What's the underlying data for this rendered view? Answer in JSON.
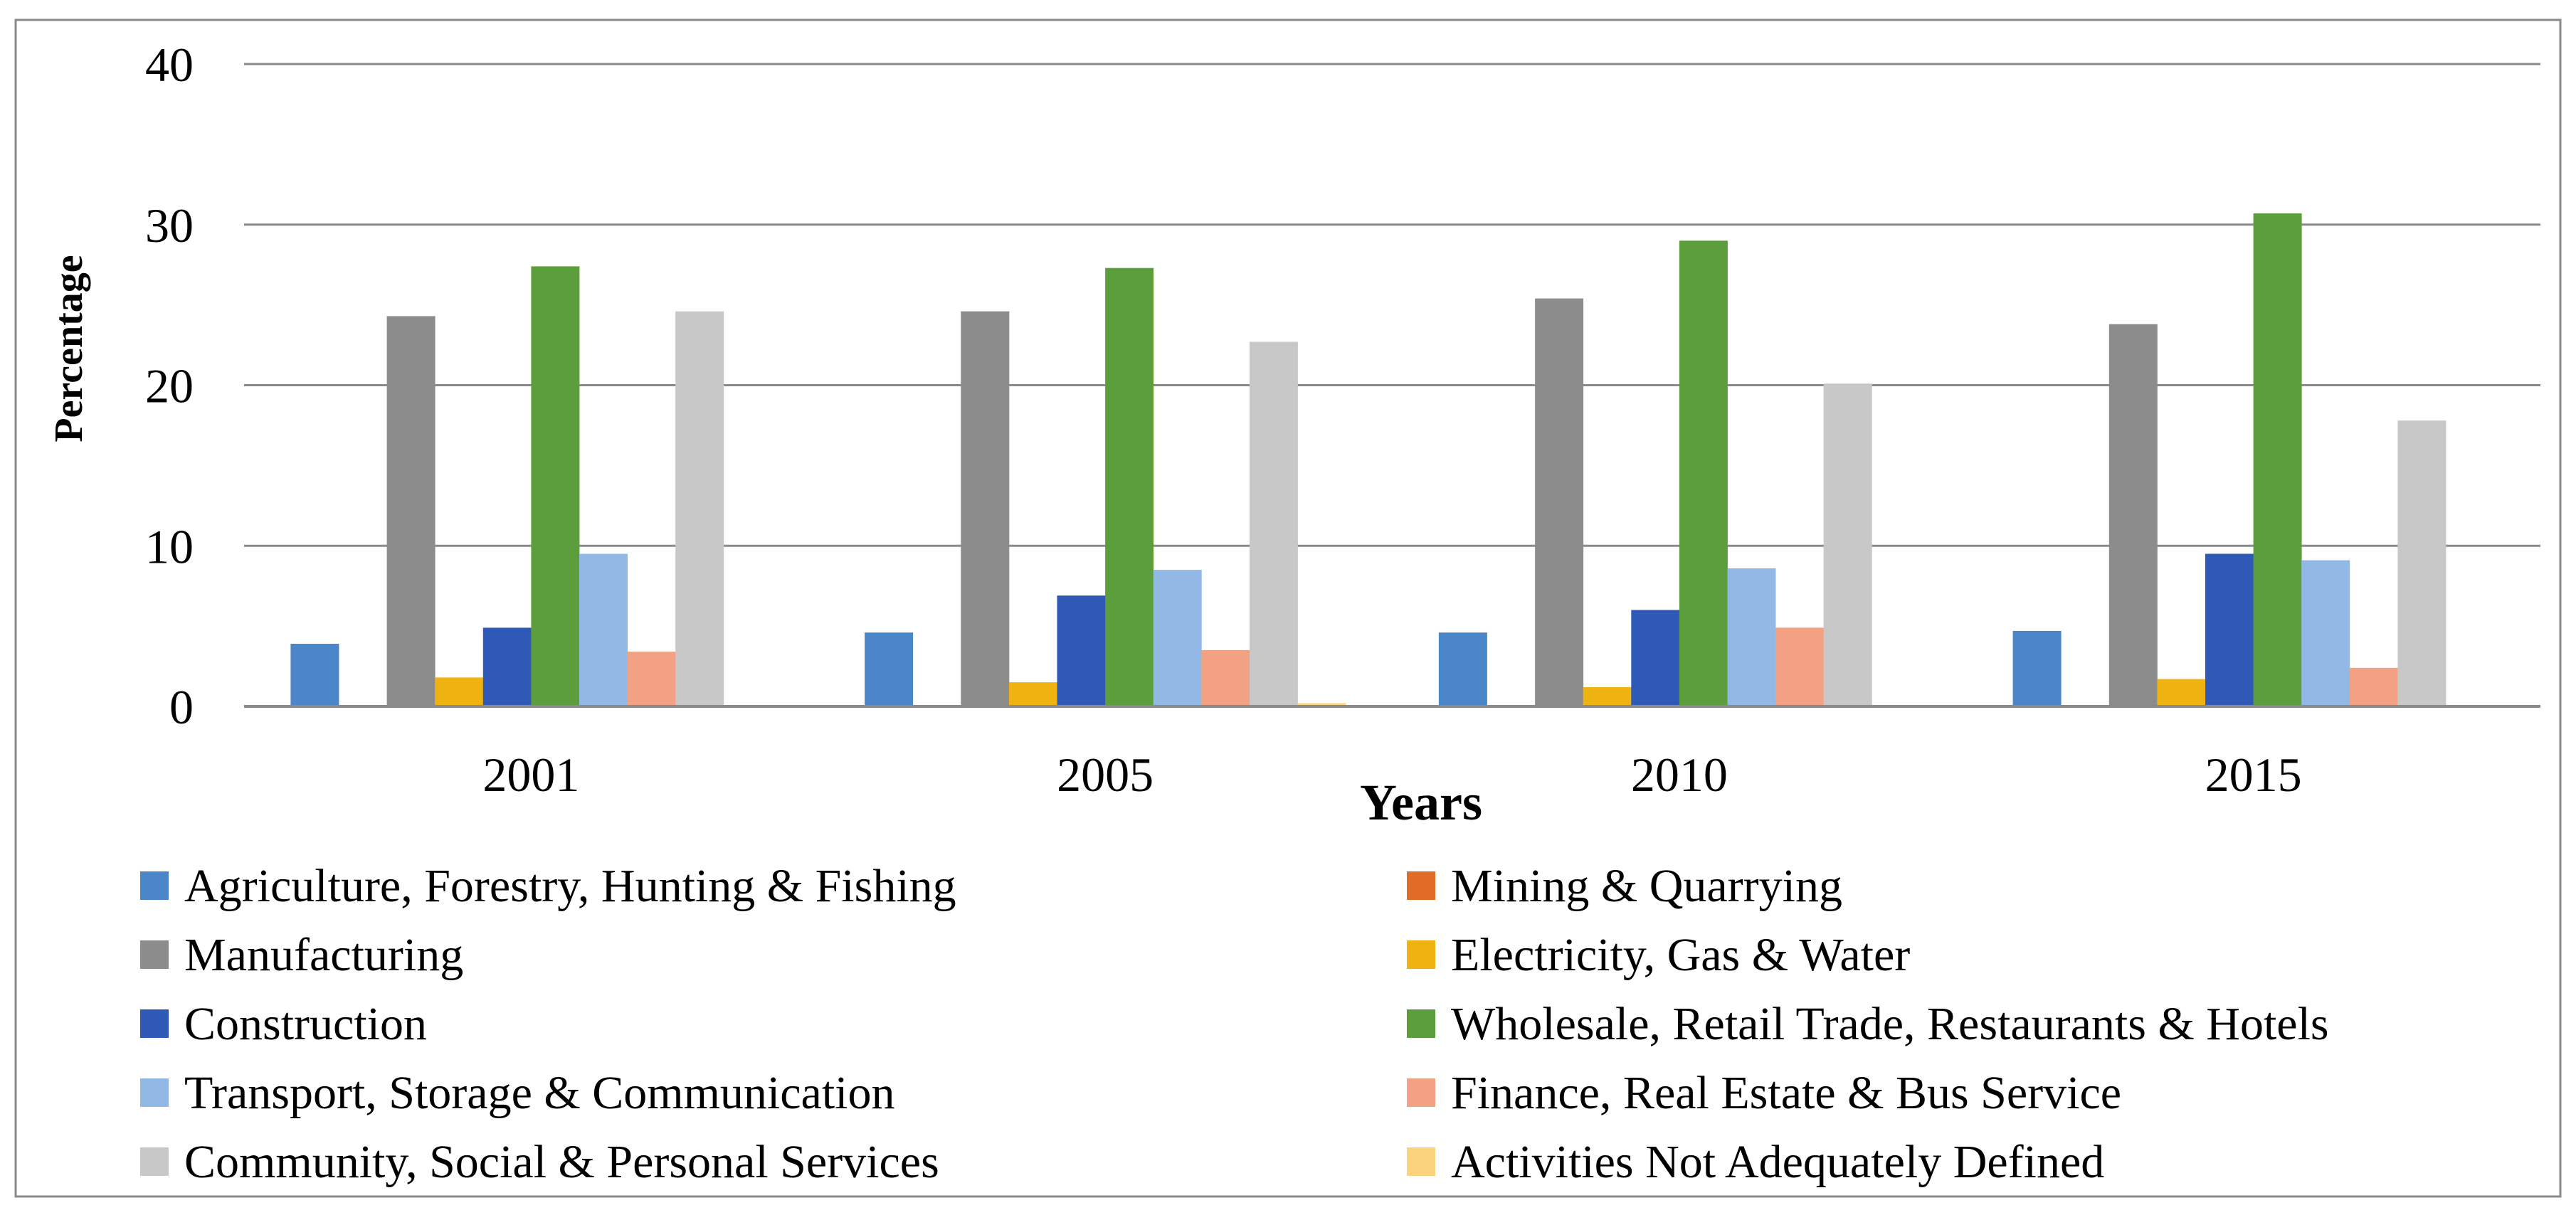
{
  "chart_data": {
    "type": "bar",
    "title": "",
    "xlabel": "Years",
    "ylabel": "Percentage",
    "ylim": [
      0,
      40
    ],
    "yticks": [
      0,
      10,
      20,
      30,
      40
    ],
    "grid": true,
    "legend_position": "bottom",
    "categories": [
      "2001",
      "2005",
      "2010",
      "2015"
    ],
    "series": [
      {
        "name": "Agriculture, Forestry, Hunting & Fishing",
        "color": "#4a86c8",
        "values": [
          3.9,
          4.6,
          4.6,
          4.7
        ]
      },
      {
        "name": "Mining & Quarrying",
        "color": "#e06c28",
        "values": [
          0,
          0,
          0,
          0
        ]
      },
      {
        "name": "Manufacturing",
        "color": "#8c8c8c",
        "values": [
          24.3,
          24.6,
          25.4,
          23.8
        ]
      },
      {
        "name": "Electricity, Gas & Water",
        "color": "#eeb211",
        "values": [
          1.8,
          1.5,
          1.2,
          1.7
        ]
      },
      {
        "name": "Construction",
        "color": "#2e59b7",
        "values": [
          4.9,
          6.9,
          6.0,
          9.5
        ]
      },
      {
        "name": "Wholesale, Retail Trade, Restaurants & Hotels",
        "color": "#5c9e3c",
        "values": [
          27.4,
          27.3,
          29.0,
          30.7
        ]
      },
      {
        "name": "Transport, Storage & Communication",
        "color": "#92b8e6",
        "values": [
          9.5,
          8.5,
          8.6,
          9.1
        ]
      },
      {
        "name": "Finance, Real Estate & Bus Service",
        "color": "#f2a182",
        "values": [
          3.4,
          3.5,
          4.9,
          2.4
        ]
      },
      {
        "name": "Community, Social & Personal Services",
        "color": "#c8c8c8",
        "values": [
          24.6,
          22.7,
          20.1,
          17.8
        ]
      },
      {
        "name": "Activities Not Adequately Defined",
        "color": "#fbd37c",
        "values": [
          0,
          0.2,
          0,
          0
        ]
      }
    ]
  }
}
